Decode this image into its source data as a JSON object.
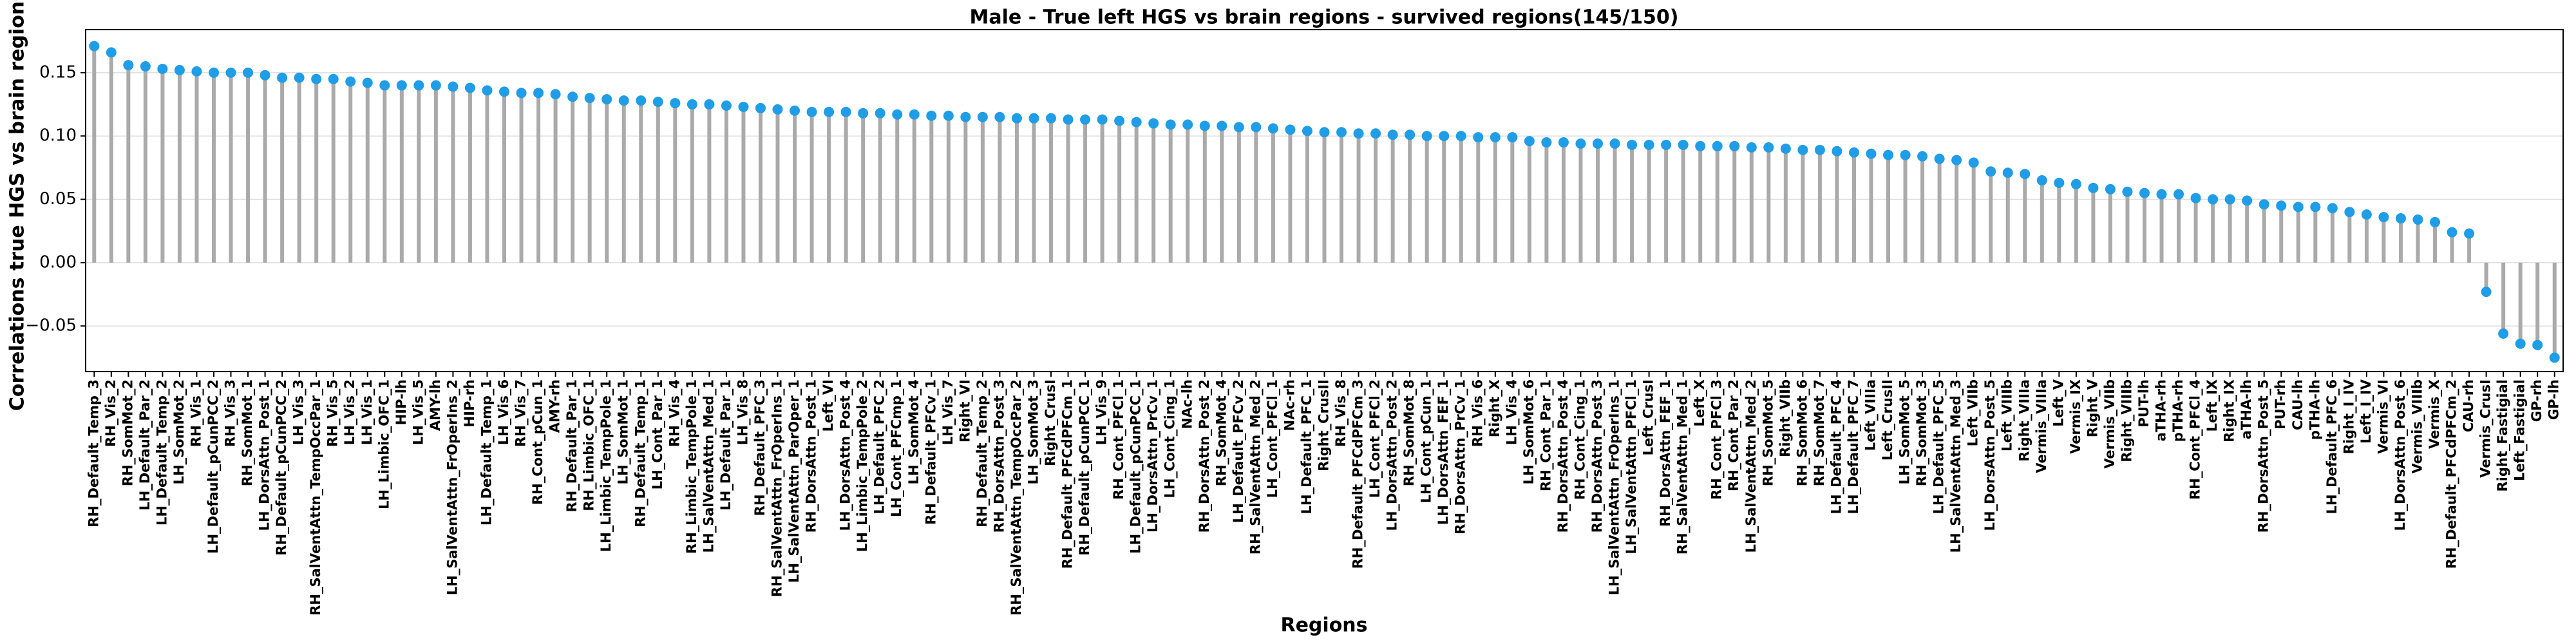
{
  "chart_data": {
    "type": "lollipop",
    "title": "Male - True left HGS vs brain regions - survived regions(145/150)",
    "xlabel": "Regions",
    "ylabel": "Correlations true HGS vs brain regions",
    "categories": [
      "RH_Default_Temp_3",
      "RH_Vis_2",
      "RH_SomMot_2",
      "LH_Default_Par_2",
      "LH_Default_Temp_2",
      "LH_SomMot_2",
      "RH_Vis_1",
      "LH_Default_pCunPCC_2",
      "RH_Vis_3",
      "RH_SomMot_1",
      "LH_DorsAttn_Post_1",
      "RH_Default_pCunPCC_2",
      "LH_Vis_3",
      "RH_SalVentAttn_TempOccPar_1",
      "RH_Vis_5",
      "LH_Vis_2",
      "LH_Vis_1",
      "LH_Limbic_OFC_1",
      "HIP-lh",
      "LH_Vis_5",
      "AMY-lh",
      "LH_SalVentAttn_FrOperIns_2",
      "HIP-rh",
      "LH_Default_Temp_1",
      "LH_Vis_6",
      "RH_Vis_7",
      "RH_Cont_pCun_1",
      "AMY-rh",
      "RH_Default_Par_1",
      "RH_Limbic_OFC_1",
      "LH_Limbic_TempPole_1",
      "LH_SomMot_1",
      "RH_Default_Temp_1",
      "LH_Cont_Par_1",
      "RH_Vis_4",
      "RH_Limbic_TempPole_1",
      "LH_SalVentAttn_Med_1",
      "LH_Default_Par_1",
      "LH_Vis_8",
      "RH_Default_PFC_3",
      "RH_SalVentAttn_FrOperIns_1",
      "LH_SalVentAttn_ParOper_1",
      "RH_DorsAttn_Post_1",
      "Left_VI",
      "LH_DorsAttn_Post_4",
      "LH_Limbic_TempPole_2",
      "LH_Default_PFC_2",
      "LH_Cont_PFCmp_1",
      "LH_SomMot_4",
      "RH_Default_PFCv_1",
      "LH_Vis_7",
      "Right_VI",
      "RH_Default_Temp_2",
      "RH_DorsAttn_Post_3",
      "RH_SalVentAttn_TempOccPar_2",
      "LH_SomMot_3",
      "Right_CrusI",
      "RH_Default_PFCdPFCm_1",
      "RH_Default_pCunPCC_1",
      "LH_Vis_9",
      "RH_Cont_PFCl_1",
      "LH_Default_pCunPCC_1",
      "LH_DorsAttn_PrCv_1",
      "LH_Cont_Cing_1",
      "NAc-lh",
      "RH_DorsAttn_Post_2",
      "RH_SomMot_4",
      "LH_Default_PFCv_2",
      "RH_SalVentAttn_Med_2",
      "LH_Cont_PFCl_1",
      "NAc-rh",
      "LH_Default_PFC_1",
      "Right_CrusII",
      "RH_Vis_8",
      "RH_Default_PFCdPFCm_3",
      "LH_Cont_PFCl_2",
      "LH_DorsAttn_Post_2",
      "RH_SomMot_8",
      "LH_Cont_pCun_1",
      "LH_DorsAttn_FEF_1",
      "RH_DorsAttn_PrCv_1",
      "RH_Vis_6",
      "Right_X",
      "LH_Vis_4",
      "LH_SomMot_6",
      "RH_Cont_Par_1",
      "RH_DorsAttn_Post_4",
      "RH_Cont_Cing_1",
      "RH_DorsAttn_Post_3",
      "LH_SalVentAttn_FrOperIns_1",
      "LH_SalVentAttn_PFCl_1",
      "Left_CrusI",
      "RH_DorsAttn_FEF_1",
      "RH_SalVentAttn_Med_1",
      "Left_X",
      "RH_Cont_PFCl_3",
      "RH_Cont_Par_2",
      "LH_SalVentAttn_Med_2",
      "RH_SomMot_5",
      "Right_VIIb",
      "RH_SomMot_6",
      "RH_SomMot_7",
      "LH_Default_PFC_4",
      "LH_Default_PFC_7",
      "Left_VIIIa",
      "Left_CrusII",
      "LH_SomMot_5",
      "RH_SomMot_3",
      "LH_Default_PFC_5",
      "LH_SalVentAttn_Med_3",
      "Left_VIIb",
      "LH_DorsAttn_Post_5",
      "Left_VIIIb",
      "Right_VIIIa",
      "Vermis_VIIIa",
      "Left_V",
      "Vermis_IX",
      "Right_V",
      "Vermis_VIIb",
      "Right_VIIIb",
      "PUT-lh",
      "aTHA-rh",
      "pTHA-rh",
      "RH_Cont_PFCl_4",
      "Left_IX",
      "Right_IX",
      "aTHA-lh",
      "RH_DorsAttn_Post_5",
      "PUT-rh",
      "CAU-lh",
      "pTHA-lh",
      "LH_Default_PFC_6",
      "Right_I_IV",
      "Left_I_IV",
      "Vermis_VI",
      "LH_DorsAttn_Post_6",
      "Vermis_VIIIb",
      "Vermis_X",
      "RH_Default_PFCdPFCm_2",
      "CAU-rh",
      "Vermis_CrusI",
      "Right_Fastigial",
      "Left_Fastigial",
      "GP-rh",
      "GP-lh"
    ],
    "values": [
      0.171,
      0.166,
      0.156,
      0.155,
      0.153,
      0.152,
      0.151,
      0.15,
      0.15,
      0.15,
      0.148,
      0.146,
      0.146,
      0.145,
      0.145,
      0.143,
      0.142,
      0.14,
      0.14,
      0.14,
      0.14,
      0.139,
      0.138,
      0.136,
      0.135,
      0.134,
      0.134,
      0.133,
      0.131,
      0.13,
      0.129,
      0.128,
      0.128,
      0.127,
      0.126,
      0.125,
      0.125,
      0.124,
      0.123,
      0.122,
      0.121,
      0.12,
      0.119,
      0.119,
      0.119,
      0.118,
      0.118,
      0.117,
      0.117,
      0.116,
      0.116,
      0.115,
      0.115,
      0.115,
      0.114,
      0.114,
      0.114,
      0.113,
      0.113,
      0.113,
      0.112,
      0.111,
      0.11,
      0.109,
      0.109,
      0.108,
      0.108,
      0.107,
      0.107,
      0.106,
      0.105,
      0.104,
      0.103,
      0.103,
      0.102,
      0.102,
      0.101,
      0.101,
      0.1,
      0.1,
      0.1,
      0.099,
      0.099,
      0.099,
      0.096,
      0.095,
      0.095,
      0.094,
      0.094,
      0.094,
      0.093,
      0.093,
      0.093,
      0.093,
      0.092,
      0.092,
      0.092,
      0.091,
      0.091,
      0.09,
      0.089,
      0.089,
      0.088,
      0.087,
      0.086,
      0.085,
      0.085,
      0.084,
      0.082,
      0.081,
      0.079,
      0.072,
      0.071,
      0.07,
      0.065,
      0.063,
      0.062,
      0.059,
      0.058,
      0.056,
      0.055,
      0.054,
      0.054,
      0.051,
      0.05,
      0.05,
      0.049,
      0.046,
      0.045,
      0.044,
      0.044,
      0.043,
      0.04,
      0.038,
      0.036,
      0.035,
      0.034,
      0.032,
      0.024,
      0.023,
      -0.023,
      -0.056,
      -0.064,
      -0.065,
      -0.075
    ],
    "color": "#1f9de6",
    "stem_color": "#aaaaaa",
    "ylim": [
      -0.086,
      0.184
    ],
    "yticks": [
      {
        "value": -0.05,
        "label": "−0.05"
      },
      {
        "value": 0,
        "label": "0.00"
      },
      {
        "value": 0.05,
        "label": "0.05"
      },
      {
        "value": 0.1,
        "label": "0.10"
      },
      {
        "value": 0.15,
        "label": "0.15"
      }
    ],
    "grid": true
  }
}
